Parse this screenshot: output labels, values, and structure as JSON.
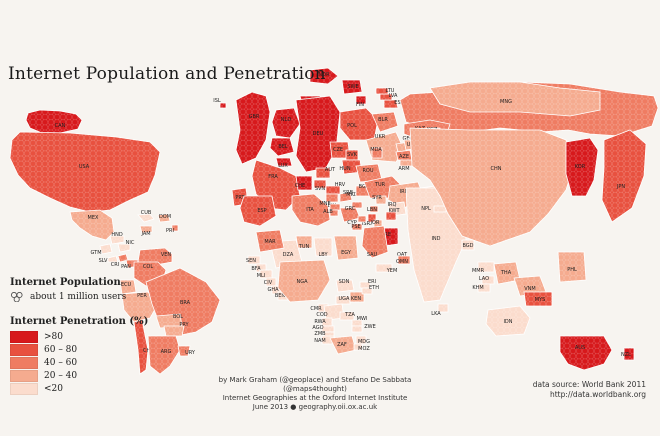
{
  "title": "Internet Population and Penetration",
  "legend": {
    "population_heading": "Internet Population",
    "population_item": "about 1 million users",
    "penetration_heading": "Internet Penetration (%)",
    "classes": [
      {
        "label": ">80",
        "color": "#d7191c"
      },
      {
        "label": "60 – 80",
        "color": "#e8513f"
      },
      {
        "label": "40 – 60",
        "color": "#ef7c62"
      },
      {
        "label": "20 – 40",
        "color": "#f5ab8f"
      },
      {
        "label": "<20",
        "color": "#fbdccd"
      }
    ]
  },
  "credits": {
    "line1": "by Mark Graham (@geoplace) and Stefano De Sabbata (@maps4thought)",
    "line2": "Internet Geographies at the Oxford Internet Institute",
    "line3": "June 2013 ● geography.oii.ox.ac.uk"
  },
  "source": {
    "line1": "data source: World Bank 2011",
    "line2": "http://data.worldbank.org"
  },
  "regions": [
    {
      "code": "CAN",
      "class": 0
    },
    {
      "code": "USA",
      "class": 1
    },
    {
      "code": "MEX",
      "class": 3
    },
    {
      "code": "CUB",
      "class": 4
    },
    {
      "code": "DOM",
      "class": 3
    },
    {
      "code": "JAM",
      "class": 3
    },
    {
      "code": "PRI",
      "class": 2
    },
    {
      "code": "HND",
      "class": 4
    },
    {
      "code": "GTM",
      "class": 4
    },
    {
      "code": "SLV",
      "class": 4
    },
    {
      "code": "NIC",
      "class": 4
    },
    {
      "code": "CRI",
      "class": 2
    },
    {
      "code": "PAN",
      "class": 2
    },
    {
      "code": "VEN",
      "class": 2
    },
    {
      "code": "COL",
      "class": 2
    },
    {
      "code": "ECU",
      "class": 3
    },
    {
      "code": "PER",
      "class": 3
    },
    {
      "code": "BRA",
      "class": 2
    },
    {
      "code": "BOL",
      "class": 3
    },
    {
      "code": "PRY",
      "class": 3
    },
    {
      "code": "CHL",
      "class": 1
    },
    {
      "code": "ARG",
      "class": 2
    },
    {
      "code": "URY",
      "class": 2
    },
    {
      "code": "ISL",
      "class": 0
    },
    {
      "code": "GBR",
      "class": 0
    },
    {
      "code": "NOR",
      "class": 0
    },
    {
      "code": "SWE",
      "class": 0
    },
    {
      "code": "DNK",
      "class": 0
    },
    {
      "code": "FIN",
      "class": 0
    },
    {
      "code": "NLD",
      "class": 0
    },
    {
      "code": "BEL",
      "class": 0
    },
    {
      "code": "LUX",
      "class": 0
    },
    {
      "code": "DEU",
      "class": 0
    },
    {
      "code": "FRA",
      "class": 1
    },
    {
      "code": "CHE",
      "class": 0
    },
    {
      "code": "AUT",
      "class": 1
    },
    {
      "code": "CZE",
      "class": 1
    },
    {
      "code": "POL",
      "class": 1
    },
    {
      "code": "SVK",
      "class": 1
    },
    {
      "code": "HUN",
      "class": 1
    },
    {
      "code": "EST",
      "class": 1
    },
    {
      "code": "LVA",
      "class": 1
    },
    {
      "code": "LTU",
      "class": 1
    },
    {
      "code": "BLR",
      "class": 2
    },
    {
      "code": "UKR",
      "class": 3
    },
    {
      "code": "MDA",
      "class": 2
    },
    {
      "code": "RUS",
      "class": 2
    },
    {
      "code": "PRT",
      "class": 1
    },
    {
      "code": "ESP",
      "class": 1
    },
    {
      "code": "ITA",
      "class": 2
    },
    {
      "code": "SVN",
      "class": 1
    },
    {
      "code": "HRV",
      "class": 1
    },
    {
      "code": "BIH",
      "class": 2
    },
    {
      "code": "SRB",
      "class": 2
    },
    {
      "code": "MNE",
      "class": 2
    },
    {
      "code": "ALB",
      "class": 2
    },
    {
      "code": "MKD",
      "class": 2
    },
    {
      "code": "GRC",
      "class": 2
    },
    {
      "code": "BGR",
      "class": 2
    },
    {
      "code": "ROU",
      "class": 2
    },
    {
      "code": "TUR",
      "class": 2
    },
    {
      "code": "GEO",
      "class": 3
    },
    {
      "code": "ARM",
      "class": 3
    },
    {
      "code": "AZE",
      "class": 2
    },
    {
      "code": "KAZ",
      "class": 2
    },
    {
      "code": "UZB",
      "class": 3
    },
    {
      "code": "TKM",
      "class": 4
    },
    {
      "code": "TJK",
      "class": 4
    },
    {
      "code": "KGZ",
      "class": 3
    },
    {
      "code": "AFG",
      "class": 4
    },
    {
      "code": "IRN",
      "class": 3
    },
    {
      "code": "IRQ",
      "class": 4
    },
    {
      "code": "SYR",
      "class": 3
    },
    {
      "code": "LBN",
      "class": 2
    },
    {
      "code": "ISR",
      "class": 1
    },
    {
      "code": "JOR",
      "class": 3
    },
    {
      "code": "KWT",
      "class": 1
    },
    {
      "code": "QAT",
      "class": 0
    },
    {
      "code": "ARE",
      "class": 0
    },
    {
      "code": "OMN",
      "class": 2
    },
    {
      "code": "YEM",
      "class": 4
    },
    {
      "code": "SAU",
      "class": 2
    },
    {
      "code": "CYP",
      "class": 2
    },
    {
      "code": "PSE",
      "class": 2
    },
    {
      "code": "EGY",
      "class": 3
    },
    {
      "code": "LBY",
      "class": 4
    },
    {
      "code": "TUN",
      "class": 3
    },
    {
      "code": "DZA",
      "class": 4
    },
    {
      "code": "MAR",
      "class": 2
    },
    {
      "code": "SEN",
      "class": 4
    },
    {
      "code": "BFA",
      "class": 4
    },
    {
      "code": "MLI",
      "class": 4
    },
    {
      "code": "CIV",
      "class": 4
    },
    {
      "code": "GHA",
      "class": 4
    },
    {
      "code": "BEN",
      "class": 4
    },
    {
      "code": "NGA",
      "class": 3
    },
    {
      "code": "CMR",
      "class": 4
    },
    {
      "code": "COD",
      "class": 4
    },
    {
      "code": "RWA",
      "class": 4
    },
    {
      "code": "AGO",
      "class": 4
    },
    {
      "code": "ZMB",
      "class": 4
    },
    {
      "code": "NAM",
      "class": 4
    },
    {
      "code": "ZAF",
      "class": 3
    },
    {
      "code": "UGA",
      "class": 4
    },
    {
      "code": "KEN",
      "class": 3
    },
    {
      "code": "TZA",
      "class": 4
    },
    {
      "code": "MWI",
      "class": 4
    },
    {
      "code": "ZWE",
      "class": 4
    },
    {
      "code": "MDG",
      "class": 4
    },
    {
      "code": "MOZ",
      "class": 4
    },
    {
      "code": "SDN",
      "class": 4
    },
    {
      "code": "ERI",
      "class": 4
    },
    {
      "code": "ETH",
      "class": 4
    },
    {
      "code": "PAK",
      "class": 4
    },
    {
      "code": "IND",
      "class": 4
    },
    {
      "code": "NPL",
      "class": 4
    },
    {
      "code": "BGD",
      "class": 4
    },
    {
      "code": "LKA",
      "class": 4
    },
    {
      "code": "MMR",
      "class": 4
    },
    {
      "code": "LAO",
      "class": 4
    },
    {
      "code": "KHM",
      "class": 4
    },
    {
      "code": "THA",
      "class": 3
    },
    {
      "code": "VNM",
      "class": 3
    },
    {
      "code": "MYS",
      "class": 1
    },
    {
      "code": "IDN",
      "class": 4
    },
    {
      "code": "PHL",
      "class": 3
    },
    {
      "code": "CHN",
      "class": 3
    },
    {
      "code": "MNG",
      "class": 3
    },
    {
      "code": "KOR",
      "class": 0
    },
    {
      "code": "JPN",
      "class": 1
    },
    {
      "code": "AUS",
      "class": 0
    },
    {
      "code": "NZL",
      "class": 0
    }
  ]
}
